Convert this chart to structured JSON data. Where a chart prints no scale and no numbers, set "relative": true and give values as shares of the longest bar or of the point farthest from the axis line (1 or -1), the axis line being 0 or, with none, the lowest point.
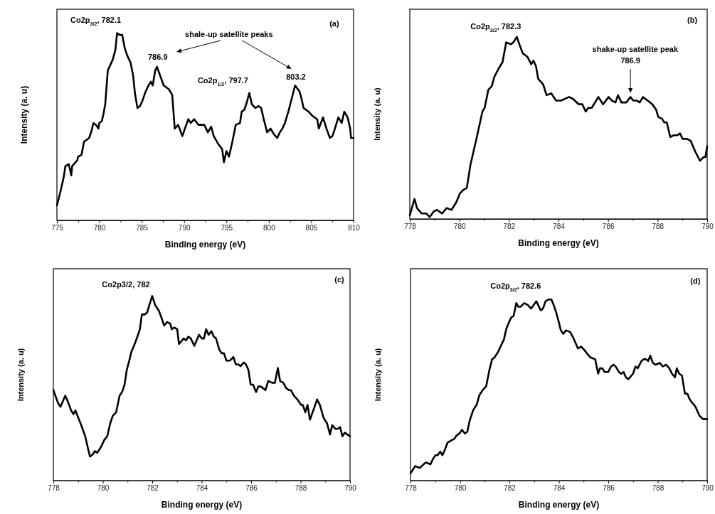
{
  "chart_data": [
    {
      "type": "line",
      "relative": true,
      "xlabel": "Binding energy (eV)",
      "ylabel": "Intensity (a. u)",
      "xlim": [
        775,
        810
      ],
      "xticks": [
        775,
        {
          "value": 777.5,
          "label": null
        },
        780,
        {
          "value": 782.5,
          "label": null
        },
        785,
        {
          "value": 787.5,
          "label": null
        },
        790,
        {
          "value": 792.5,
          "label": null
        },
        795,
        {
          "value": 797.5,
          "label": null
        },
        800,
        {
          "value": 802.5,
          "label": null
        },
        805,
        {
          "value": 807.5,
          "label": null
        },
        810
      ],
      "x": [
        775.0,
        775.4,
        775.8,
        776.0,
        776.4,
        776.7,
        776.8,
        777.4,
        777.5,
        777.9,
        778.2,
        778.5,
        778.8,
        779.1,
        779.3,
        779.6,
        779.9,
        780.0,
        780.3,
        780.5,
        780.7,
        781.0,
        781.6,
        781.9,
        782.1,
        782.4,
        782.7,
        783.0,
        783.3,
        783.7,
        784.0,
        784.2,
        784.5,
        784.8,
        785.1,
        785.4,
        785.8,
        786.1,
        786.3,
        786.6,
        786.8,
        787.2,
        787.6,
        788.2,
        788.6,
        788.9,
        789.3,
        789.8,
        790.1,
        790.5,
        790.8,
        791.2,
        791.7,
        792.1,
        792.4,
        792.8,
        793.2,
        793.5,
        794.0,
        794.5,
        794.7,
        795.0,
        795.3,
        795.7,
        796.1,
        796.6,
        796.8,
        797.1,
        797.4,
        797.7,
        798.0,
        798.4,
        798.8,
        799.1,
        799.4,
        799.8,
        800.2,
        800.6,
        801.0,
        801.3,
        801.6,
        801.9,
        802.3,
        802.7,
        803.1,
        803.6,
        803.8,
        804.1,
        804.4,
        804.7,
        805.1,
        805.7,
        805.9,
        806.4,
        806.8,
        807.2,
        807.5,
        807.8,
        808.2,
        808.6,
        808.9,
        809.3,
        809.6,
        809.7,
        810.0
      ],
      "series": [
        {
          "color": "#000000",
          "values": [
            0.08,
            0.15,
            0.23,
            0.29,
            0.3,
            0.24,
            0.29,
            0.32,
            0.34,
            0.35,
            0.42,
            0.43,
            0.44,
            0.48,
            0.52,
            0.51,
            0.49,
            0.52,
            0.53,
            0.57,
            0.62,
            0.8,
            0.86,
            0.91,
            1.0,
            0.99,
            0.99,
            0.92,
            0.88,
            0.84,
            0.77,
            0.68,
            0.6,
            0.61,
            0.64,
            0.68,
            0.72,
            0.74,
            0.72,
            0.8,
            0.82,
            0.77,
            0.72,
            0.7,
            0.67,
            0.49,
            0.51,
            0.45,
            0.49,
            0.54,
            0.52,
            0.54,
            0.51,
            0.51,
            0.51,
            0.47,
            0.5,
            0.45,
            0.41,
            0.38,
            0.31,
            0.37,
            0.34,
            0.42,
            0.51,
            0.52,
            0.58,
            0.59,
            0.63,
            0.68,
            0.62,
            0.6,
            0.61,
            0.6,
            0.54,
            0.47,
            0.49,
            0.46,
            0.44,
            0.47,
            0.49,
            0.52,
            0.58,
            0.65,
            0.72,
            0.69,
            0.66,
            0.6,
            0.59,
            0.58,
            0.56,
            0.54,
            0.49,
            0.55,
            0.49,
            0.44,
            0.45,
            0.49,
            0.55,
            0.52,
            0.58,
            0.55,
            0.49,
            0.44,
            0.44
          ]
        }
      ],
      "annotations": [
        "(a)",
        {
          "text": "Co2p$_{3/2}$, 782.1",
          "x": 782.1,
          "y": 1.0
        },
        "shale-up satellite peaks",
        {
          "text": "786.9",
          "x": 786.9,
          "y": 0.82
        },
        {
          "text": "Co2p$_{1/2}$, 797.7",
          "x": 797.7,
          "y": 0.68
        },
        {
          "text": "803.2",
          "x": 803.2,
          "y": 0.72
        }
      ]
    },
    {
      "type": "line",
      "relative": true,
      "xlabel": "Binding energy (eV)",
      "ylabel": "Intensity (a. u)",
      "xlim": [
        778,
        790
      ],
      "xticks": [
        778,
        {
          "value": 779,
          "label": null
        },
        780,
        {
          "value": 781,
          "label": null
        },
        782,
        {
          "value": 783,
          "label": null
        },
        784,
        {
          "value": 785,
          "label": null
        },
        786,
        {
          "value": 787,
          "label": null
        },
        788,
        {
          "value": 789,
          "label": null
        },
        790
      ],
      "x": [
        778.0,
        778.19,
        778.29,
        778.48,
        778.67,
        778.8,
        778.96,
        779.1,
        779.3,
        779.49,
        779.68,
        779.87,
        780.02,
        780.16,
        780.3,
        780.45,
        780.69,
        780.93,
        781.02,
        781.17,
        781.31,
        781.41,
        781.6,
        781.74,
        781.89,
        782.08,
        782.18,
        782.32,
        782.42,
        782.56,
        782.75,
        782.9,
        782.99,
        783.09,
        783.18,
        783.38,
        783.52,
        783.71,
        783.9,
        784.1,
        784.43,
        784.58,
        784.82,
        784.96,
        785.1,
        785.2,
        785.34,
        785.61,
        785.8,
        786.02,
        786.16,
        786.3,
        786.4,
        786.54,
        786.74,
        786.9,
        787.02,
        787.17,
        787.28,
        787.41,
        787.6,
        787.79,
        787.94,
        788.03,
        788.18,
        788.27,
        788.37,
        788.51,
        788.66,
        788.8,
        788.9,
        789.01,
        789.18,
        789.33,
        789.52,
        789.71,
        789.86,
        789.93,
        790.0
      ],
      "series": [
        {
          "color": "#000000",
          "values": [
            0.02,
            0.11,
            0.06,
            0.03,
            0.03,
            0.01,
            0.04,
            0.05,
            0.03,
            0.06,
            0.05,
            0.09,
            0.14,
            0.16,
            0.17,
            0.3,
            0.44,
            0.59,
            0.61,
            0.71,
            0.73,
            0.78,
            0.83,
            0.86,
            0.97,
            0.96,
            0.97,
            1.0,
            0.96,
            0.91,
            0.89,
            0.85,
            0.87,
            0.84,
            0.77,
            0.74,
            0.68,
            0.69,
            0.65,
            0.65,
            0.67,
            0.66,
            0.63,
            0.63,
            0.59,
            0.61,
            0.61,
            0.67,
            0.63,
            0.67,
            0.65,
            0.64,
            0.68,
            0.64,
            0.64,
            0.67,
            0.65,
            0.65,
            0.64,
            0.67,
            0.65,
            0.63,
            0.6,
            0.56,
            0.55,
            0.53,
            0.53,
            0.45,
            0.46,
            0.46,
            0.47,
            0.44,
            0.44,
            0.43,
            0.37,
            0.32,
            0.34,
            0.34,
            0.4
          ]
        }
      ],
      "annotations": [
        "(b)",
        {
          "text": "Co2p$_{3/2}$, 782.3",
          "x": 782.3,
          "y": 1.0
        },
        "shake-up satellite peak",
        "786.9"
      ]
    },
    {
      "type": "line",
      "relative": true,
      "xlabel": "Binding energy (eV)",
      "ylabel": "Intensity (a. u)",
      "xlim": [
        778,
        790
      ],
      "xticks": [
        778,
        {
          "value": 779,
          "label": null
        },
        780,
        {
          "value": 781,
          "label": null
        },
        782,
        {
          "value": 783,
          "label": null
        },
        784,
        {
          "value": 785,
          "label": null
        },
        786,
        {
          "value": 787,
          "label": null
        },
        788,
        {
          "value": 789,
          "label": null
        },
        790
      ],
      "x": [
        778.0,
        778.19,
        778.29,
        778.48,
        778.58,
        778.72,
        778.81,
        778.89,
        779.01,
        779.1,
        779.29,
        779.39,
        779.48,
        779.58,
        779.68,
        779.77,
        779.92,
        780.06,
        780.18,
        780.3,
        780.4,
        780.54,
        780.68,
        780.78,
        780.88,
        780.97,
        781.07,
        781.16,
        781.26,
        781.4,
        781.5,
        781.58,
        781.69,
        781.79,
        781.88,
        782.0,
        782.12,
        782.27,
        782.38,
        782.48,
        782.6,
        782.73,
        782.79,
        782.89,
        783.01,
        783.08,
        783.27,
        783.37,
        783.46,
        783.56,
        783.7,
        783.89,
        784.01,
        784.09,
        784.18,
        784.28,
        784.39,
        784.49,
        784.58,
        784.71,
        784.81,
        784.9,
        785.0,
        785.14,
        785.28,
        785.38,
        785.48,
        785.57,
        785.7,
        785.79,
        785.89,
        785.98,
        786.08,
        786.2,
        786.29,
        786.39,
        786.58,
        786.69,
        786.85,
        786.96,
        787.08,
        787.17,
        787.3,
        787.42,
        787.54,
        787.61,
        787.73,
        787.87,
        788.02,
        788.09,
        788.19,
        788.28,
        788.38,
        788.54,
        788.67,
        788.78,
        788.93,
        789.07,
        789.19,
        789.28,
        789.41,
        789.5,
        789.6,
        789.69,
        789.79,
        789.89,
        790.0
      ],
      "series": [
        {
          "color": "#000000",
          "values": [
            0.49,
            0.42,
            0.4,
            0.46,
            0.43,
            0.38,
            0.36,
            0.38,
            0.34,
            0.31,
            0.24,
            0.18,
            0.13,
            0.14,
            0.16,
            0.15,
            0.18,
            0.22,
            0.24,
            0.31,
            0.35,
            0.37,
            0.46,
            0.48,
            0.52,
            0.6,
            0.65,
            0.7,
            0.73,
            0.78,
            0.82,
            0.9,
            0.9,
            0.91,
            0.95,
            1.0,
            0.95,
            0.92,
            0.88,
            0.84,
            0.86,
            0.85,
            0.82,
            0.83,
            0.82,
            0.74,
            0.77,
            0.76,
            0.78,
            0.77,
            0.73,
            0.79,
            0.77,
            0.77,
            0.82,
            0.79,
            0.81,
            0.78,
            0.77,
            0.71,
            0.69,
            0.69,
            0.65,
            0.65,
            0.67,
            0.63,
            0.63,
            0.62,
            0.64,
            0.63,
            0.6,
            0.52,
            0.52,
            0.48,
            0.51,
            0.51,
            0.49,
            0.54,
            0.53,
            0.53,
            0.61,
            0.54,
            0.53,
            0.5,
            0.49,
            0.49,
            0.46,
            0.44,
            0.41,
            0.41,
            0.37,
            0.41,
            0.33,
            0.39,
            0.44,
            0.41,
            0.34,
            0.31,
            0.25,
            0.3,
            0.28,
            0.28,
            0.29,
            0.24,
            0.26,
            0.25,
            0.24
          ]
        }
      ],
      "annotations": [
        "(c)",
        {
          "text": "Co2p3/2, 782",
          "x": 782,
          "y": 1.0
        }
      ]
    },
    {
      "type": "line",
      "relative": true,
      "xlabel": "Binding energy (eV)",
      "ylabel": "Intensity (a. u)",
      "xlim": [
        778,
        790
      ],
      "xticks": [
        778,
        {
          "value": 779,
          "label": null
        },
        780,
        {
          "value": 781,
          "label": null
        },
        782,
        {
          "value": 783,
          "label": null
        },
        784,
        {
          "value": 785,
          "label": null
        },
        786,
        {
          "value": 787,
          "label": null
        },
        788,
        {
          "value": 789,
          "label": null
        },
        790
      ],
      "x": [
        778.0,
        778.19,
        778.38,
        778.53,
        778.62,
        778.81,
        778.91,
        779.01,
        779.1,
        779.2,
        779.29,
        779.39,
        779.5,
        779.63,
        779.77,
        779.87,
        779.98,
        780.08,
        780.2,
        780.3,
        780.39,
        780.54,
        780.68,
        780.78,
        780.92,
        781.06,
        781.19,
        781.3,
        781.4,
        781.54,
        781.64,
        781.78,
        781.88,
        781.97,
        782.07,
        782.17,
        782.28,
        782.36,
        782.45,
        782.6,
        782.74,
        782.88,
        782.98,
        783.09,
        783.27,
        783.36,
        783.46,
        783.58,
        783.7,
        783.79,
        783.89,
        783.99,
        784.08,
        784.18,
        784.29,
        784.46,
        784.58,
        784.77,
        784.9,
        785.04,
        785.15,
        785.28,
        785.47,
        785.59,
        785.66,
        785.76,
        785.85,
        786.0,
        786.11,
        786.21,
        786.3,
        786.43,
        786.52,
        786.62,
        786.71,
        786.81,
        787.0,
        787.1,
        787.19,
        787.34,
        787.43,
        787.53,
        787.61,
        787.7,
        787.8,
        787.91,
        788.08,
        788.2,
        788.34,
        788.47,
        788.58,
        788.7,
        788.77,
        788.87,
        788.98,
        789.1,
        789.2,
        789.29,
        789.39,
        789.52,
        789.68,
        789.82,
        790.0
      ],
      "series": [
        {
          "color": "#000000",
          "values": [
            0.04,
            0.08,
            0.07,
            0.09,
            0.1,
            0.09,
            0.12,
            0.14,
            0.14,
            0.16,
            0.14,
            0.17,
            0.21,
            0.22,
            0.23,
            0.25,
            0.26,
            0.28,
            0.26,
            0.27,
            0.33,
            0.39,
            0.42,
            0.47,
            0.5,
            0.52,
            0.61,
            0.67,
            0.68,
            0.71,
            0.74,
            0.78,
            0.84,
            0.87,
            0.9,
            0.91,
            0.98,
            0.96,
            0.96,
            0.98,
            0.97,
            0.95,
            0.97,
            0.99,
            0.94,
            0.95,
            0.99,
            1.0,
            1.0,
            0.97,
            0.93,
            0.88,
            0.83,
            0.81,
            0.83,
            0.82,
            0.79,
            0.73,
            0.74,
            0.72,
            0.7,
            0.68,
            0.67,
            0.59,
            0.62,
            0.62,
            0.6,
            0.6,
            0.63,
            0.64,
            0.63,
            0.6,
            0.59,
            0.6,
            0.57,
            0.56,
            0.59,
            0.63,
            0.62,
            0.66,
            0.67,
            0.67,
            0.66,
            0.69,
            0.65,
            0.64,
            0.65,
            0.63,
            0.64,
            0.62,
            0.59,
            0.57,
            0.62,
            0.59,
            0.58,
            0.48,
            0.48,
            0.45,
            0.43,
            0.41,
            0.36,
            0.34,
            0.34
          ]
        }
      ],
      "annotations": [
        "(d)",
        {
          "text": "Co2p$_{3/2}$, 782.6",
          "x": 782.6,
          "y": 0.98
        }
      ]
    }
  ]
}
